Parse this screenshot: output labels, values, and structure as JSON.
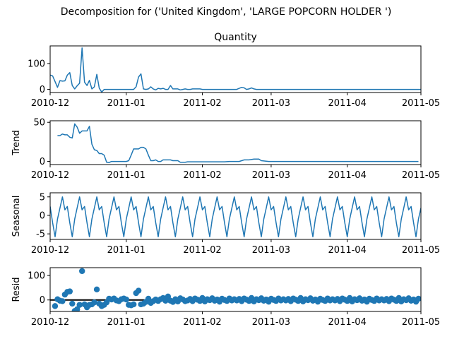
{
  "figure": {
    "suptitle": "Decomposition for ('United Kingdom', 'LARGE POPCORN HOLDER ')"
  },
  "colors": {
    "line": "#1f77b4",
    "axis": "#000000",
    "zero_line": "#000000"
  },
  "chart_data": [
    {
      "type": "line",
      "title": "Quantity",
      "ylabel": "",
      "ylim": [
        -12,
        168
      ],
      "yticks": [
        0,
        100
      ],
      "x_start": "2010-12-01",
      "x_end": "2011-05-01",
      "xticks": [
        "2010-12",
        "2011-01",
        "2011-02",
        "2011-03",
        "2011-04",
        "2011-05"
      ],
      "series": [
        {
          "points": [
            [
              "2010-12-01",
              55
            ],
            [
              "2010-12-02",
              52
            ],
            [
              "2010-12-03",
              30
            ],
            [
              "2010-12-04",
              8
            ],
            [
              "2010-12-05",
              34
            ],
            [
              "2010-12-06",
              32
            ],
            [
              "2010-12-07",
              33
            ],
            [
              "2010-12-08",
              55
            ],
            [
              "2010-12-09",
              65
            ],
            [
              "2010-12-10",
              15
            ],
            [
              "2010-12-11",
              2
            ],
            [
              "2010-12-12",
              14
            ],
            [
              "2010-12-13",
              24
            ],
            [
              "2010-12-14",
              160
            ],
            [
              "2010-12-15",
              28
            ],
            [
              "2010-12-16",
              15
            ],
            [
              "2010-12-17",
              35
            ],
            [
              "2010-12-18",
              2
            ],
            [
              "2010-12-19",
              10
            ],
            [
              "2010-12-20",
              58
            ],
            [
              "2010-12-21",
              5
            ],
            [
              "2010-12-22",
              -10
            ],
            [
              "2010-12-23",
              0
            ],
            [
              "2010-12-24",
              0
            ],
            [
              "2011-01-04",
              0
            ],
            [
              "2011-01-05",
              10
            ],
            [
              "2011-01-06",
              48
            ],
            [
              "2011-01-07",
              60
            ],
            [
              "2011-01-08",
              2
            ],
            [
              "2011-01-09",
              0
            ],
            [
              "2011-01-10",
              2
            ],
            [
              "2011-01-11",
              10
            ],
            [
              "2011-01-12",
              2
            ],
            [
              "2011-01-13",
              -2
            ],
            [
              "2011-01-14",
              4
            ],
            [
              "2011-01-15",
              2
            ],
            [
              "2011-01-16",
              4
            ],
            [
              "2011-01-17",
              0
            ],
            [
              "2011-01-18",
              0
            ],
            [
              "2011-01-19",
              15
            ],
            [
              "2011-01-20",
              2
            ],
            [
              "2011-01-21",
              2
            ],
            [
              "2011-01-22",
              2
            ],
            [
              "2011-01-23",
              -2
            ],
            [
              "2011-01-24",
              0
            ],
            [
              "2011-01-25",
              2
            ],
            [
              "2011-01-26",
              0
            ],
            [
              "2011-01-27",
              0
            ],
            [
              "2011-01-28",
              2
            ],
            [
              "2011-01-31",
              2
            ],
            [
              "2011-02-01",
              0
            ],
            [
              "2011-02-05",
              0
            ],
            [
              "2011-02-14",
              0
            ],
            [
              "2011-02-15",
              0
            ],
            [
              "2011-02-16",
              4
            ],
            [
              "2011-02-17",
              8
            ],
            [
              "2011-02-18",
              6
            ],
            [
              "2011-02-19",
              0
            ],
            [
              "2011-02-20",
              2
            ],
            [
              "2011-02-21",
              6
            ],
            [
              "2011-02-22",
              2
            ],
            [
              "2011-02-23",
              0
            ],
            [
              "2011-02-24",
              0
            ],
            [
              "2011-03-01",
              0
            ],
            [
              "2011-05-01",
              0
            ]
          ]
        }
      ]
    },
    {
      "type": "line",
      "title": "",
      "ylabel": "Trend",
      "ylim": [
        -4,
        52
      ],
      "yticks": [
        0,
        50
      ],
      "x_start": "2010-12-01",
      "x_end": "2011-05-01",
      "xticks": [
        "2010-12",
        "2011-01",
        "2011-02",
        "2011-03",
        "2011-04",
        "2011-05"
      ],
      "series": [
        {
          "points": [
            [
              "2010-12-04",
              33
            ],
            [
              "2010-12-05",
              33
            ],
            [
              "2010-12-06",
              35
            ],
            [
              "2010-12-07",
              34
            ],
            [
              "2010-12-08",
              34
            ],
            [
              "2010-12-09",
              31
            ],
            [
              "2010-12-10",
              30
            ],
            [
              "2010-12-11",
              48
            ],
            [
              "2010-12-12",
              44
            ],
            [
              "2010-12-13",
              36
            ],
            [
              "2010-12-14",
              39
            ],
            [
              "2010-12-15",
              39
            ],
            [
              "2010-12-16",
              39
            ],
            [
              "2010-12-17",
              45
            ],
            [
              "2010-12-18",
              22
            ],
            [
              "2010-12-19",
              15
            ],
            [
              "2010-12-20",
              14
            ],
            [
              "2010-12-21",
              10
            ],
            [
              "2010-12-22",
              10
            ],
            [
              "2010-12-23",
              8
            ],
            [
              "2010-12-24",
              -1
            ],
            [
              "2010-12-25",
              -1.5
            ],
            [
              "2010-12-26",
              0
            ],
            [
              "2011-01-01",
              0
            ],
            [
              "2011-01-02",
              1
            ],
            [
              "2011-01-03",
              8
            ],
            [
              "2011-01-04",
              16
            ],
            [
              "2011-01-05",
              16
            ],
            [
              "2011-01-06",
              16
            ],
            [
              "2011-01-07",
              18
            ],
            [
              "2011-01-08",
              18
            ],
            [
              "2011-01-09",
              16
            ],
            [
              "2011-01-10",
              8
            ],
            [
              "2011-01-11",
              1
            ],
            [
              "2011-01-12",
              1
            ],
            [
              "2011-01-13",
              2
            ],
            [
              "2011-01-14",
              0
            ],
            [
              "2011-01-15",
              0
            ],
            [
              "2011-01-16",
              2
            ],
            [
              "2011-01-17",
              2
            ],
            [
              "2011-01-18",
              2
            ],
            [
              "2011-01-19",
              2
            ],
            [
              "2011-01-20",
              1
            ],
            [
              "2011-01-21",
              1
            ],
            [
              "2011-01-22",
              1
            ],
            [
              "2011-01-23",
              -1
            ],
            [
              "2011-01-24",
              -1
            ],
            [
              "2011-01-25",
              -1
            ],
            [
              "2011-01-26",
              -0.5
            ],
            [
              "2011-01-27",
              -0.5
            ],
            [
              "2011-02-10",
              -0.5
            ],
            [
              "2011-02-12",
              0
            ],
            [
              "2011-02-16",
              0
            ],
            [
              "2011-02-18",
              2
            ],
            [
              "2011-02-20",
              2
            ],
            [
              "2011-02-22",
              3
            ],
            [
              "2011-02-24",
              3
            ],
            [
              "2011-02-25",
              1
            ],
            [
              "2011-02-28",
              0
            ],
            [
              "2011-04-30",
              0
            ]
          ]
        }
      ]
    },
    {
      "type": "line",
      "title": "",
      "ylabel": "Seasonal",
      "ylim": [
        -6.5,
        6.1
      ],
      "yticks": [
        -5,
        0,
        5
      ],
      "x_start": "2010-12-01",
      "x_end": "2011-05-01",
      "xticks": [
        "2010-12",
        "2011-01",
        "2011-02",
        "2011-03",
        "2011-04",
        "2011-05"
      ],
      "period_pattern": [
        2.4,
        -2,
        -5.8,
        -1,
        2,
        5,
        1.5
      ],
      "pattern_start": "2010-12-01",
      "series": []
    },
    {
      "type": "scatter",
      "title": "",
      "ylabel": "Resid",
      "ylim": [
        -47,
        132
      ],
      "yticks": [
        0,
        100
      ],
      "x_start": "2010-12-01",
      "x_end": "2011-05-01",
      "xticks": [
        "2010-12",
        "2011-01",
        "2011-02",
        "2011-03",
        "2011-04",
        "2011-05"
      ],
      "zero_line": true,
      "series": [
        {
          "points": [
            [
              "2010-12-03",
              -25
            ],
            [
              "2010-12-04",
              3
            ],
            [
              "2010-12-05",
              -3
            ],
            [
              "2010-12-06",
              -5
            ],
            [
              "2010-12-07",
              22
            ],
            [
              "2010-12-08",
              33
            ],
            [
              "2010-12-09",
              35
            ],
            [
              "2010-12-10",
              -15
            ],
            [
              "2010-12-11",
              -45
            ],
            [
              "2010-12-12",
              -38
            ],
            [
              "2010-12-13",
              -20
            ],
            [
              "2010-12-14",
              118
            ],
            [
              "2010-12-15",
              -18
            ],
            [
              "2010-12-16",
              -30
            ],
            [
              "2010-12-17",
              -20
            ],
            [
              "2010-12-18",
              -18
            ],
            [
              "2010-12-19",
              -10
            ],
            [
              "2010-12-20",
              43
            ],
            [
              "2010-12-21",
              -15
            ],
            [
              "2010-12-22",
              -25
            ],
            [
              "2010-12-23",
              -20
            ],
            [
              "2010-12-24",
              -10
            ],
            [
              "2010-12-25",
              5
            ],
            [
              "2010-12-26",
              2
            ],
            [
              "2010-12-27",
              6
            ],
            [
              "2010-12-28",
              -2
            ],
            [
              "2010-12-29",
              -5
            ],
            [
              "2010-12-30",
              3
            ],
            [
              "2010-12-31",
              6
            ],
            [
              "2011-01-01",
              2
            ],
            [
              "2011-01-02",
              -20
            ],
            [
              "2011-01-03",
              -22
            ],
            [
              "2011-01-04",
              -18
            ],
            [
              "2011-01-05",
              28
            ],
            [
              "2011-01-06",
              38
            ],
            [
              "2011-01-07",
              -18
            ],
            [
              "2011-01-08",
              -15
            ],
            [
              "2011-01-09",
              -8
            ],
            [
              "2011-01-10",
              5
            ],
            [
              "2011-01-11",
              -12
            ],
            [
              "2011-01-12",
              -5
            ],
            [
              "2011-01-13",
              2
            ],
            [
              "2011-01-14",
              -4
            ],
            [
              "2011-01-15",
              3
            ],
            [
              "2011-01-16",
              8
            ],
            [
              "2011-01-17",
              -3
            ],
            [
              "2011-01-18",
              14
            ],
            [
              "2011-01-19",
              -3
            ],
            [
              "2011-01-20",
              -8
            ],
            [
              "2011-01-21",
              3
            ],
            [
              "2011-01-22",
              -6
            ],
            [
              "2011-01-23",
              7
            ],
            [
              "2011-01-24",
              2
            ],
            [
              "2011-01-25",
              -5
            ]
          ]
        }
      ]
    }
  ]
}
